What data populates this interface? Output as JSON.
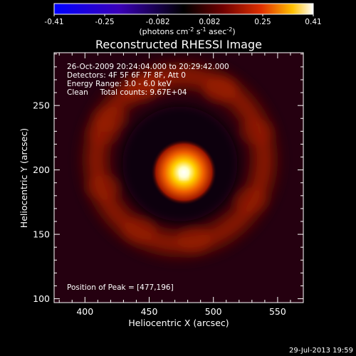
{
  "colorbar": {
    "tick_labels": [
      "-0.41",
      "-0.25",
      "-0.082",
      "0.082",
      "0.25",
      "0.41"
    ],
    "tick_values": [
      -0.41,
      -0.25,
      -0.082,
      0.082,
      0.25,
      0.41
    ],
    "range": [
      -0.41,
      0.41
    ],
    "units_prefix": "(photons cm",
    "units_exp1": "-2",
    "units_mid": " s",
    "units_exp2": "-1",
    "units_mid2": " asec",
    "units_exp3": "-2",
    "units_suffix": ")"
  },
  "chart_data": {
    "type": "heatmap",
    "title": "Reconstructed RHESSI Image",
    "xlabel": "Heliocentric X (arcsec)",
    "ylabel": "Heliocentric Y (arcsec)",
    "xlim": [
      376,
      570
    ],
    "ylim": [
      97,
      291
    ],
    "xticks": [
      400,
      450,
      500,
      550
    ],
    "yticks": [
      100,
      150,
      200,
      250
    ],
    "annotations": [
      "26-Oct-2009 20:24:04.000 to 20:29:42.000",
      "Detectors: 4F 5F 6F 7F 8F, Att 0",
      "Energy Range: 3.0 - 6.0 keV",
      "Clean     Total counts: 9.67E+04"
    ],
    "peak_label": "Position of Peak = [477,196]",
    "peak": [
      477,
      196
    ],
    "ring_center": [
      474,
      208
    ],
    "ring_radius_arcsec": 62
  },
  "footer": {
    "timestamp": "29-Jul-2013 19:59"
  }
}
